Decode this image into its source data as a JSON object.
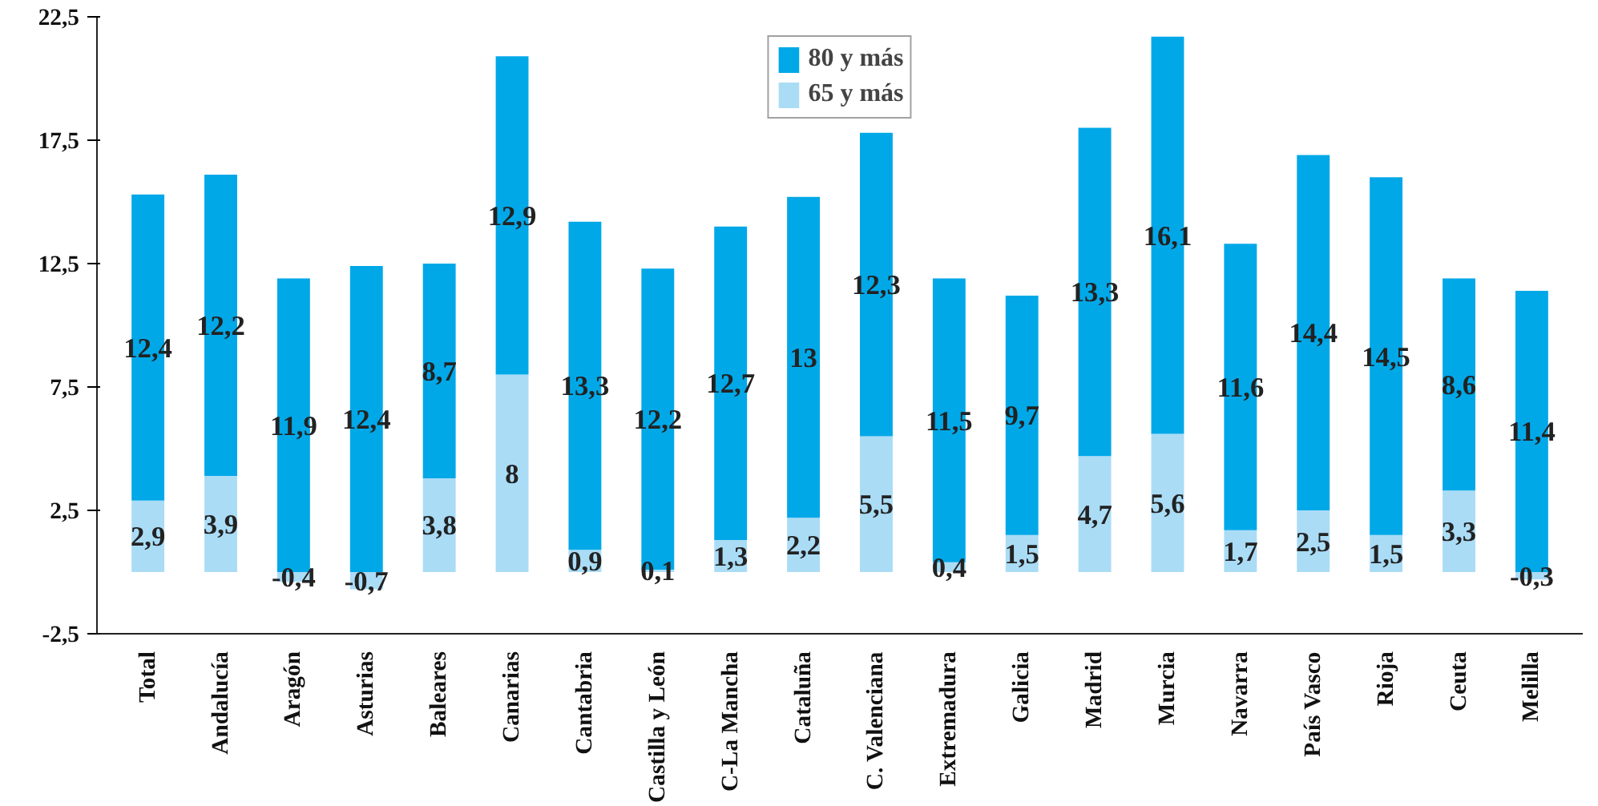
{
  "chart_data": {
    "type": "bar",
    "stacked": true,
    "legend": "top",
    "grid": false,
    "categories": [
      "Total",
      "Andalucía",
      "Aragón",
      "Asturias",
      "Baleares",
      "Canarias",
      "Cantabria",
      "Castilla y León",
      "C-La Mancha",
      "Cataluña",
      "C. Valenciana",
      "Extremadura",
      "Galicia",
      "Madrid",
      "Murcia",
      "Navarra",
      "País Vasco",
      "Rioja",
      "Ceuta",
      "Melilla"
    ],
    "series": [
      {
        "name": "65 y más",
        "color": "#aadcf6",
        "values": [
          2.9,
          3.9,
          -0.4,
          -0.7,
          3.8,
          8,
          0.9,
          0.1,
          1.3,
          2.2,
          5.5,
          0.4,
          1.5,
          4.7,
          5.6,
          1.7,
          2.5,
          1.5,
          3.3,
          -0.3
        ],
        "value_labels": [
          "2,9",
          "3,9",
          "-0,4",
          "-0,7",
          "3,8",
          "8",
          "0,9",
          "0,1",
          "1,3",
          "2,2",
          "5,5",
          "0,4",
          "1,5",
          "4,7",
          "5,6",
          "1,7",
          "2,5",
          "1,5",
          "3,3",
          "-0,3"
        ]
      },
      {
        "name": "80 y más",
        "color": "#00a8e8",
        "values": [
          12.4,
          12.2,
          11.9,
          12.4,
          8.7,
          12.9,
          13.3,
          12.2,
          12.7,
          13,
          12.3,
          11.5,
          9.7,
          13.3,
          16.1,
          11.6,
          14.4,
          14.5,
          8.6,
          11.4
        ],
        "value_labels": [
          "12,4",
          "12,2",
          "11,9",
          "12,4",
          "8,7",
          "12,9",
          "13,3",
          "12,2",
          "12,7",
          "13",
          "12,3",
          "11,5",
          "9,7",
          "13,3",
          "16,1",
          "11,6",
          "14,4",
          "14,5",
          "8,6",
          "11,4"
        ]
      }
    ],
    "ylim": [
      -2.5,
      22.5
    ],
    "yticks": [
      {
        "value": -2.5,
        "label": "-2,5"
      },
      {
        "value": 2.5,
        "label": "2,5"
      },
      {
        "value": 7.5,
        "label": "7,5"
      },
      {
        "value": 12.5,
        "label": "12,5"
      },
      {
        "value": 17.5,
        "label": "17,5"
      },
      {
        "value": 22.5,
        "label": "22,5"
      }
    ]
  }
}
